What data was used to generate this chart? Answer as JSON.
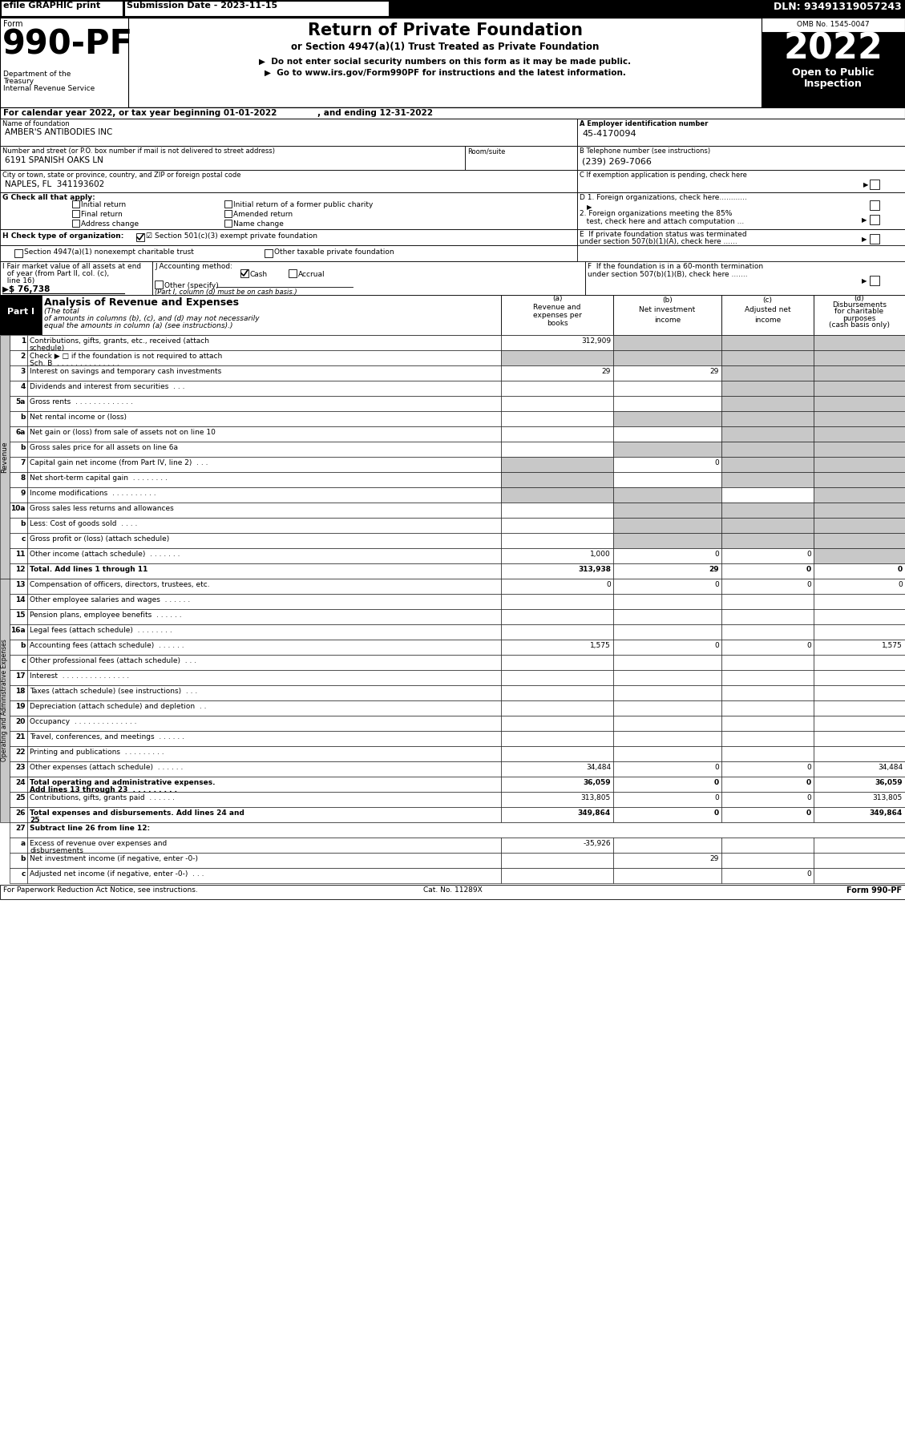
{
  "efile_text": "efile GRAPHIC print",
  "submission_date": "Submission Date - 2023-11-15",
  "dln": "DLN: 93491319057243",
  "form_number": "990-PF",
  "dept1": "Department of the",
  "dept2": "Treasury",
  "dept3": "Internal Revenue Service",
  "title_main": "Return of Private Foundation",
  "title_sub": "or Section 4947(a)(1) Trust Treated as Private Foundation",
  "bullet1": "▶  Do not enter social security numbers on this form as it may be made public.",
  "bullet2": "▶  Go to www.irs.gov/Form990PF for instructions and the latest information.",
  "omb": "OMB No. 1545-0047",
  "year": "2022",
  "cal_year_line": "For calendar year 2022, or tax year beginning 01-01-2022              , and ending 12-31-2022",
  "name_value": "AMBER'S ANTIBODIES INC",
  "ein_value": "45-4170094",
  "addr_value": "6191 SPANISH OAKS LN",
  "phone_value": "(239) 269-7066",
  "city_value": "NAPLES, FL  341193602",
  "footer_left": "For Paperwork Reduction Act Notice, see instructions.",
  "footer_cat": "Cat. No. 11289X",
  "footer_right": "Form 990-PF",
  "shade": "#c8c8c8",
  "col_a": "(a)\nRevenue and\nexpenses per\nbooks",
  "col_b": "(b)\nNet investment\nincome",
  "col_c": "(c)\nAdjusted net\nincome",
  "col_d": "(d)\nDisbursements\nfor charitable\npurposes\n(cash basis only)",
  "rev_rows": [
    {
      "num": "1",
      "label": "Contributions, gifts, grants, etc., received (attach\nschedule)",
      "a": "312,909",
      "b": "",
      "c": "",
      "d": "",
      "sb": true,
      "sc": true,
      "sd": true
    },
    {
      "num": "2",
      "label": "Check ▶ □ if the foundation is not required to attach\nSch. B  . . . . . . . . . . . . . .",
      "a": "",
      "b": "",
      "c": "",
      "d": "",
      "sa": true,
      "sb": true,
      "sc": true,
      "sd": true
    },
    {
      "num": "3",
      "label": "Interest on savings and temporary cash investments",
      "a": "29",
      "b": "29",
      "c": "",
      "d": "",
      "sc": true,
      "sd": true
    },
    {
      "num": "4",
      "label": "Dividends and interest from securities  . . .",
      "a": "",
      "b": "",
      "c": "",
      "d": "",
      "sc": true,
      "sd": true
    },
    {
      "num": "5a",
      "label": "Gross rents  . . . . . . . . . . . . .",
      "a": "",
      "b": "",
      "c": "",
      "d": "",
      "sc": true,
      "sd": true
    },
    {
      "num": "b",
      "label": "Net rental income or (loss)",
      "a": "",
      "b": "",
      "c": "",
      "d": "",
      "sb": true,
      "sc": true,
      "sd": true
    },
    {
      "num": "6a",
      "label": "Net gain or (loss) from sale of assets not on line 10",
      "a": "",
      "b": "",
      "c": "",
      "d": "",
      "sc": true,
      "sd": true
    },
    {
      "num": "b",
      "label": "Gross sales price for all assets on line 6a",
      "a": "",
      "b": "",
      "c": "",
      "d": "",
      "sb": true,
      "sc": true,
      "sd": true
    },
    {
      "num": "7",
      "label": "Capital gain net income (from Part IV, line 2)  . . .",
      "a": "",
      "b": "0",
      "c": "",
      "d": "",
      "sa": true,
      "sc": true,
      "sd": true
    },
    {
      "num": "8",
      "label": "Net short-term capital gain  . . . . . . . .",
      "a": "",
      "b": "",
      "c": "",
      "d": "",
      "sa": true,
      "sc": true,
      "sd": true
    },
    {
      "num": "9",
      "label": "Income modifications  . . . . . . . . . .",
      "a": "",
      "b": "",
      "c": "",
      "d": "",
      "sa": true,
      "sb": true,
      "sd": true
    },
    {
      "num": "10a",
      "label": "Gross sales less returns and allowances",
      "a": "",
      "b": "",
      "c": "",
      "d": "",
      "sb": true,
      "sc": true,
      "sd": true
    },
    {
      "num": "b",
      "label": "Less: Cost of goods sold  . . . .",
      "a": "",
      "b": "",
      "c": "",
      "d": "",
      "sb": true,
      "sc": true,
      "sd": true
    },
    {
      "num": "c",
      "label": "Gross profit or (loss) (attach schedule)",
      "a": "",
      "b": "",
      "c": "",
      "d": "",
      "sb": true,
      "sc": true,
      "sd": true
    },
    {
      "num": "11",
      "label": "Other income (attach schedule)  . . . . . . .",
      "a": "1,000",
      "b": "0",
      "c": "0",
      "d": "",
      "sd": true
    },
    {
      "num": "12",
      "label": "Total. Add lines 1 through 11",
      "a": "313,938",
      "b": "29",
      "c": "0",
      "d": "0",
      "bold": true
    }
  ],
  "exp_rows": [
    {
      "num": "13",
      "label": "Compensation of officers, directors, trustees, etc.",
      "a": "0",
      "b": "0",
      "c": "0",
      "d": "0"
    },
    {
      "num": "14",
      "label": "Other employee salaries and wages  . . . . . .",
      "a": "",
      "b": "",
      "c": "",
      "d": ""
    },
    {
      "num": "15",
      "label": "Pension plans, employee benefits  . . . . . .",
      "a": "",
      "b": "",
      "c": "",
      "d": ""
    },
    {
      "num": "16a",
      "label": "Legal fees (attach schedule)  . . . . . . . .",
      "a": "",
      "b": "",
      "c": "",
      "d": ""
    },
    {
      "num": "b",
      "label": "Accounting fees (attach schedule)  . . . . . .",
      "a": "1,575",
      "b": "0",
      "c": "0",
      "d": "1,575"
    },
    {
      "num": "c",
      "label": "Other professional fees (attach schedule)  . . .",
      "a": "",
      "b": "",
      "c": "",
      "d": ""
    },
    {
      "num": "17",
      "label": "Interest  . . . . . . . . . . . . . . .",
      "a": "",
      "b": "",
      "c": "",
      "d": ""
    },
    {
      "num": "18",
      "label": "Taxes (attach schedule) (see instructions)  . . .",
      "a": "",
      "b": "",
      "c": "",
      "d": ""
    },
    {
      "num": "19",
      "label": "Depreciation (attach schedule) and depletion  . .",
      "a": "",
      "b": "",
      "c": "",
      "d": ""
    },
    {
      "num": "20",
      "label": "Occupancy  . . . . . . . . . . . . . .",
      "a": "",
      "b": "",
      "c": "",
      "d": ""
    },
    {
      "num": "21",
      "label": "Travel, conferences, and meetings  . . . . . .",
      "a": "",
      "b": "",
      "c": "",
      "d": ""
    },
    {
      "num": "22",
      "label": "Printing and publications  . . . . . . . . .",
      "a": "",
      "b": "",
      "c": "",
      "d": ""
    },
    {
      "num": "23",
      "label": "Other expenses (attach schedule)  . . . . . .",
      "a": "34,484",
      "b": "0",
      "c": "0",
      "d": "34,484"
    },
    {
      "num": "24",
      "label": "Total operating and administrative expenses.\nAdd lines 13 through 23  . . . . . . . . .",
      "a": "36,059",
      "b": "0",
      "c": "0",
      "d": "36,059",
      "bold": true
    },
    {
      "num": "25",
      "label": "Contributions, gifts, grants paid  . . . . . .",
      "a": "313,805",
      "b": "0",
      "c": "0",
      "d": "313,805"
    },
    {
      "num": "26",
      "label": "Total expenses and disbursements. Add lines 24 and\n25",
      "a": "349,864",
      "b": "0",
      "c": "0",
      "d": "349,864",
      "bold": true
    }
  ],
  "bot_rows": [
    {
      "num": "27",
      "label": "Subtract line 26 from line 12:",
      "header": true
    },
    {
      "num": "a",
      "label": "Excess of revenue over expenses and\ndisbursements",
      "a": "-35,926",
      "b": "",
      "c": "",
      "d": ""
    },
    {
      "num": "b",
      "label": "Net investment income (if negative, enter -0-)",
      "a": "",
      "b": "29",
      "c": "",
      "d": ""
    },
    {
      "num": "c",
      "label": "Adjusted net income (if negative, enter -0-)  . . .",
      "a": "",
      "b": "",
      "c": "0",
      "d": ""
    }
  ]
}
